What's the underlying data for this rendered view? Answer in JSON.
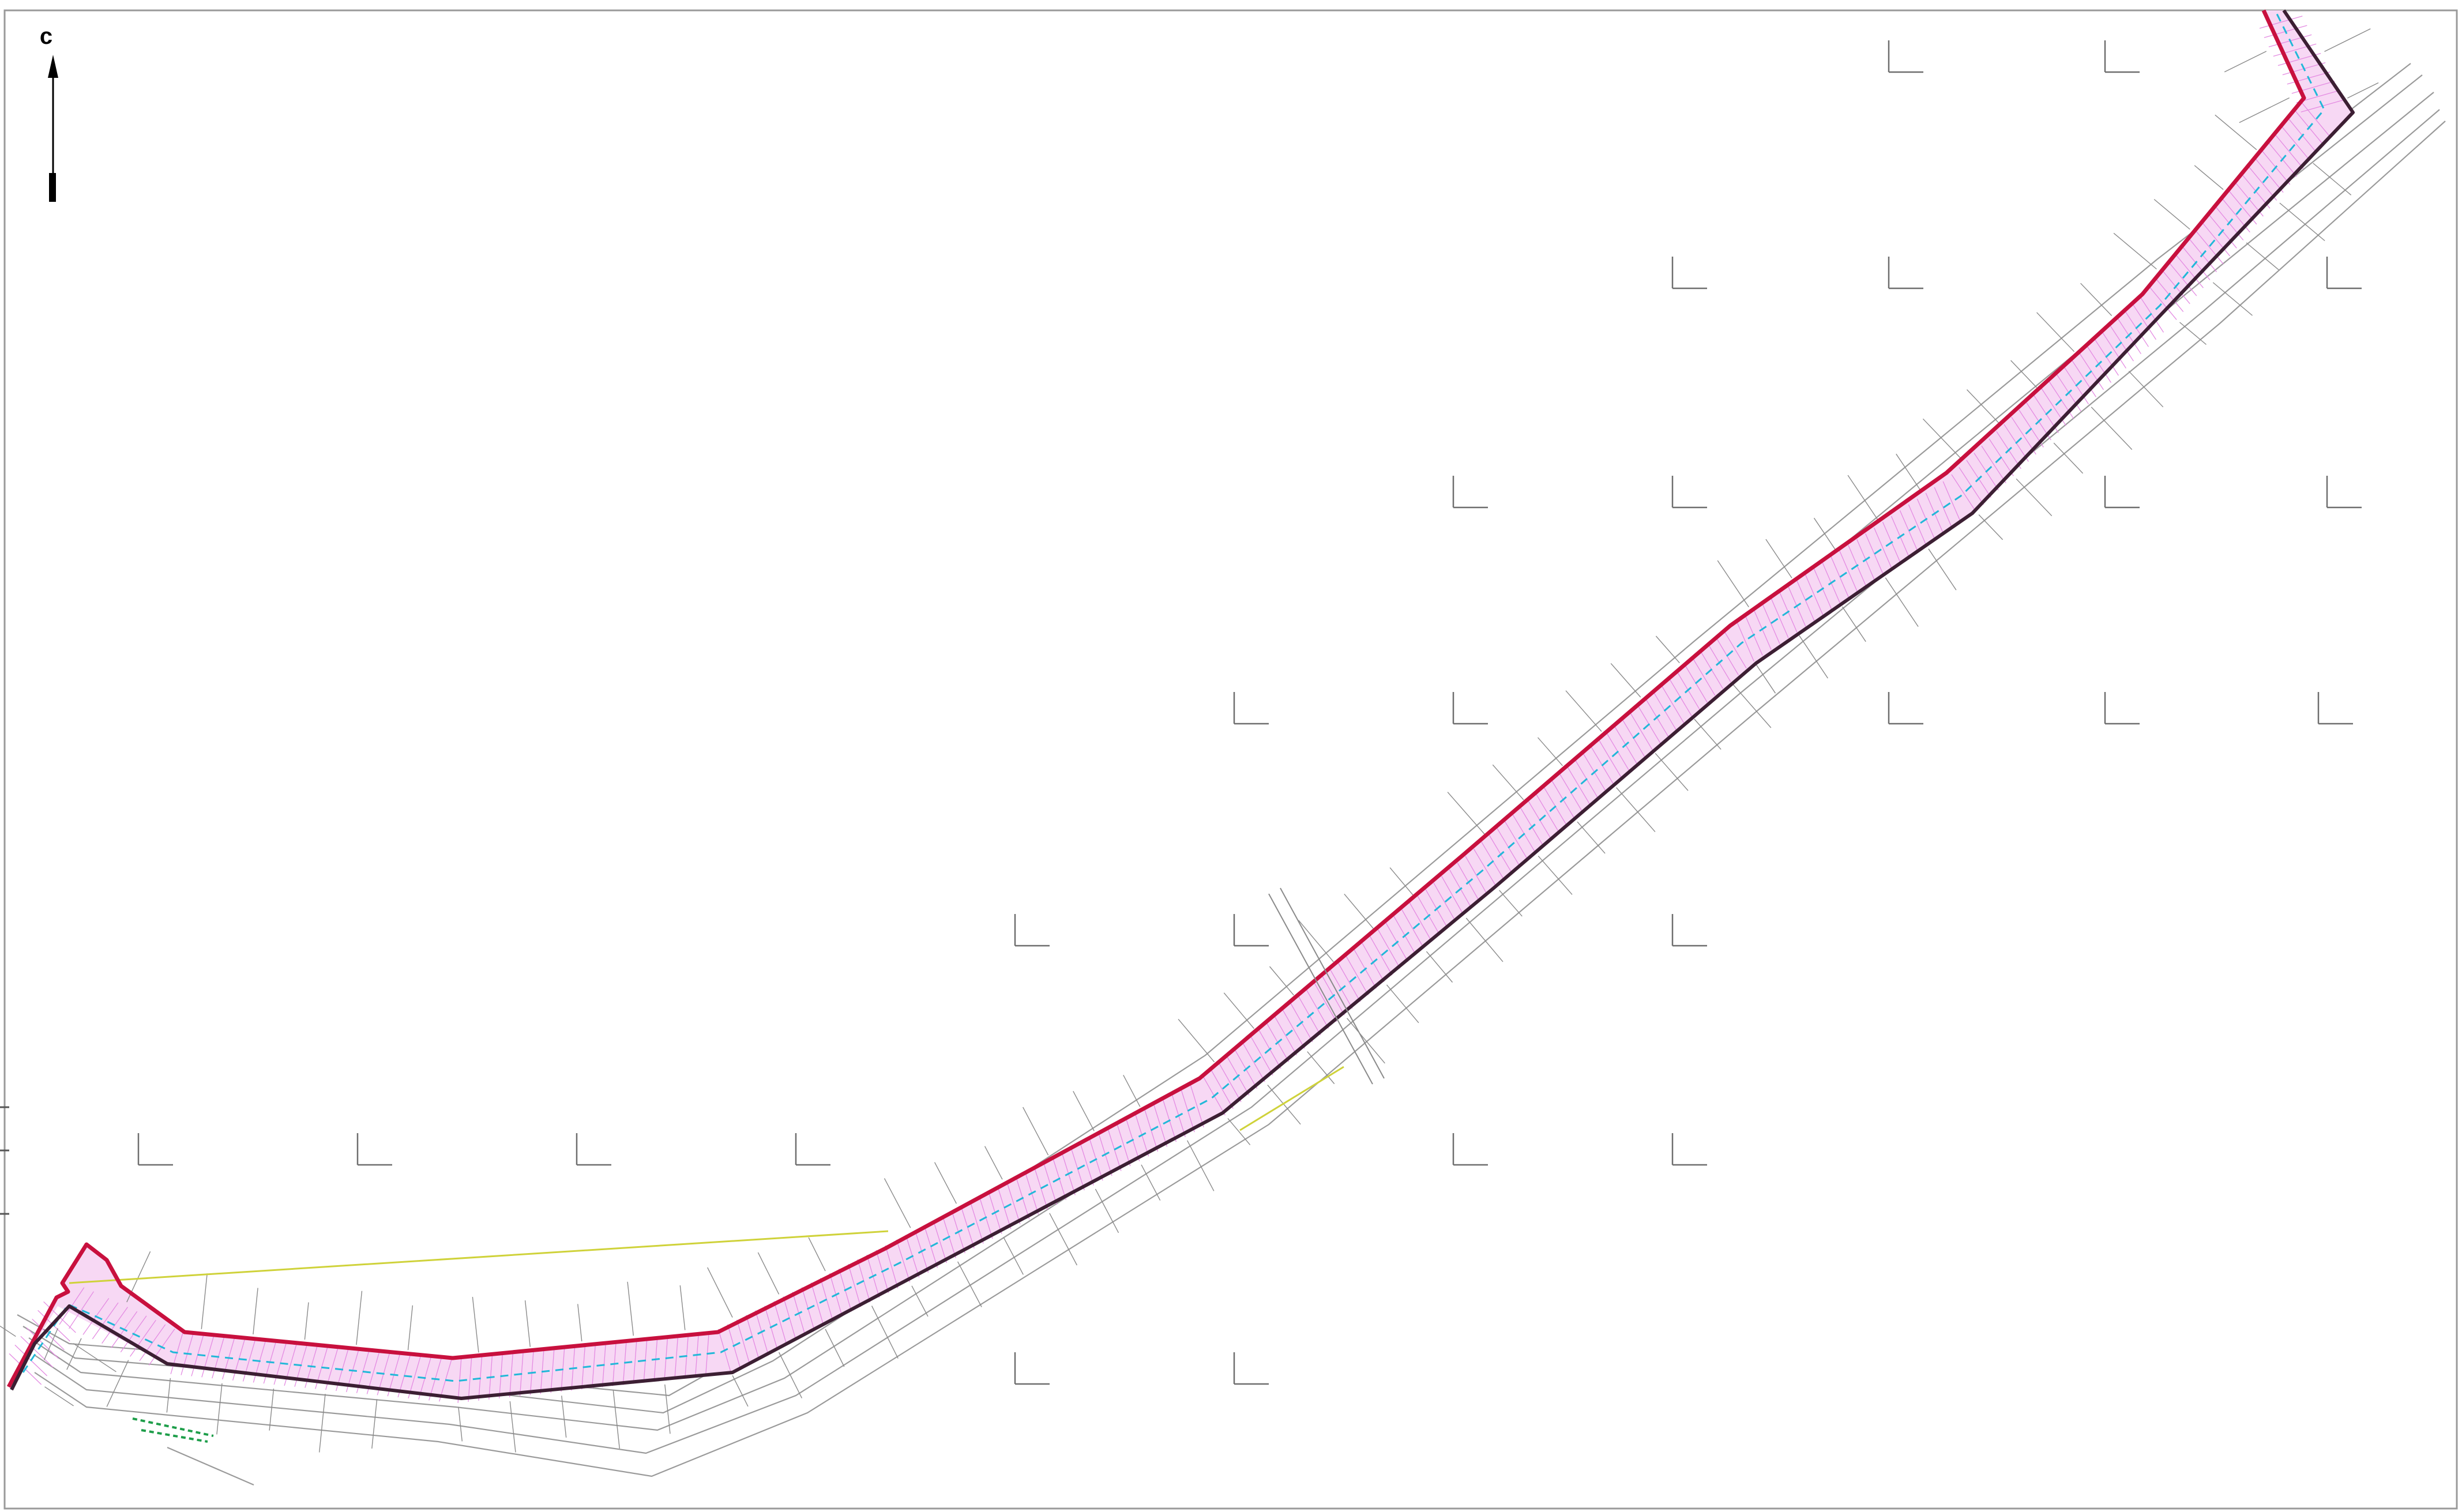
{
  "map": {
    "north_arrow": {
      "label": "с"
    },
    "colors": {
      "corridor_outline": "#c8103e",
      "corridor_inner_outline": "#3c1f33",
      "corridor_hatch": "#e48be2",
      "centerline": "#21b8d8",
      "road_edges": "#9a9a9a",
      "grid_crosses": "#6e6e6e",
      "yellow_line": "#cfd23a",
      "green_marks": "#1e9e4a"
    }
  }
}
